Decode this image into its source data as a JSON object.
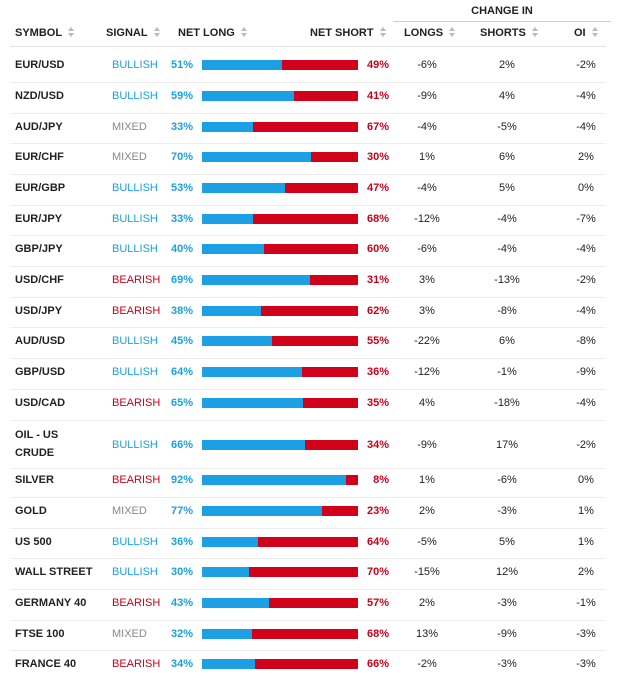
{
  "header": {
    "change_in": "CHANGE IN",
    "symbol": "SYMBOL",
    "signal": "SIGNAL",
    "net_long": "NET LONG",
    "net_short": "NET SHORT",
    "longs": "LONGS",
    "shorts": "SHORTS",
    "oi": "OI"
  },
  "colors": {
    "long": "#1d9fe3",
    "short": "#d0021b",
    "bullish": "#1aa1df",
    "bearish": "#c8001a",
    "mixed": "#888888"
  },
  "rows": [
    {
      "symbol": "EUR/USD",
      "signal": "BULLISH",
      "net_long": "51%",
      "net_short": "49%",
      "long_pct": 51,
      "longs": "-6%",
      "shorts": "2%",
      "oi": "-2%"
    },
    {
      "symbol": "NZD/USD",
      "signal": "BULLISH",
      "net_long": "59%",
      "net_short": "41%",
      "long_pct": 59,
      "longs": "-9%",
      "shorts": "4%",
      "oi": "-4%"
    },
    {
      "symbol": "AUD/JPY",
      "signal": "MIXED",
      "net_long": "33%",
      "net_short": "67%",
      "long_pct": 33,
      "longs": "-4%",
      "shorts": "-5%",
      "oi": "-4%"
    },
    {
      "symbol": "EUR/CHF",
      "signal": "MIXED",
      "net_long": "70%",
      "net_short": "30%",
      "long_pct": 70,
      "longs": "1%",
      "shorts": "6%",
      "oi": "2%"
    },
    {
      "symbol": "EUR/GBP",
      "signal": "BULLISH",
      "net_long": "53%",
      "net_short": "47%",
      "long_pct": 53,
      "longs": "-4%",
      "shorts": "5%",
      "oi": "0%"
    },
    {
      "symbol": "EUR/JPY",
      "signal": "BULLISH",
      "net_long": "33%",
      "net_short": "68%",
      "long_pct": 33,
      "longs": "-12%",
      "shorts": "-4%",
      "oi": "-7%"
    },
    {
      "symbol": "GBP/JPY",
      "signal": "BULLISH",
      "net_long": "40%",
      "net_short": "60%",
      "long_pct": 40,
      "longs": "-6%",
      "shorts": "-4%",
      "oi": "-4%"
    },
    {
      "symbol": "USD/CHF",
      "signal": "BEARISH",
      "net_long": "69%",
      "net_short": "31%",
      "long_pct": 69,
      "longs": "3%",
      "shorts": "-13%",
      "oi": "-2%"
    },
    {
      "symbol": "USD/JPY",
      "signal": "BEARISH",
      "net_long": "38%",
      "net_short": "62%",
      "long_pct": 38,
      "longs": "3%",
      "shorts": "-8%",
      "oi": "-4%"
    },
    {
      "symbol": "AUD/USD",
      "signal": "BULLISH",
      "net_long": "45%",
      "net_short": "55%",
      "long_pct": 45,
      "longs": "-22%",
      "shorts": "6%",
      "oi": "-8%"
    },
    {
      "symbol": "GBP/USD",
      "signal": "BULLISH",
      "net_long": "64%",
      "net_short": "36%",
      "long_pct": 64,
      "longs": "-12%",
      "shorts": "-1%",
      "oi": "-9%"
    },
    {
      "symbol": "USD/CAD",
      "signal": "BEARISH",
      "net_long": "65%",
      "net_short": "35%",
      "long_pct": 65,
      "longs": "4%",
      "shorts": "-18%",
      "oi": "-4%"
    },
    {
      "symbol": "OIL - US CRUDE",
      "signal": "BULLISH",
      "net_long": "66%",
      "net_short": "34%",
      "long_pct": 66,
      "longs": "-9%",
      "shorts": "17%",
      "oi": "-2%"
    },
    {
      "symbol": "SILVER",
      "signal": "BEARISH",
      "net_long": "92%",
      "net_short": "8%",
      "long_pct": 92,
      "longs": "1%",
      "shorts": "-6%",
      "oi": "0%"
    },
    {
      "symbol": "GOLD",
      "signal": "MIXED",
      "net_long": "77%",
      "net_short": "23%",
      "long_pct": 77,
      "longs": "2%",
      "shorts": "-3%",
      "oi": "1%"
    },
    {
      "symbol": "US 500",
      "signal": "BULLISH",
      "net_long": "36%",
      "net_short": "64%",
      "long_pct": 36,
      "longs": "-5%",
      "shorts": "5%",
      "oi": "1%"
    },
    {
      "symbol": "WALL STREET",
      "signal": "BULLISH",
      "net_long": "30%",
      "net_short": "70%",
      "long_pct": 30,
      "longs": "-15%",
      "shorts": "12%",
      "oi": "2%"
    },
    {
      "symbol": "GERMANY 40",
      "signal": "BEARISH",
      "net_long": "43%",
      "net_short": "57%",
      "long_pct": 43,
      "longs": "2%",
      "shorts": "-3%",
      "oi": "-1%"
    },
    {
      "symbol": "FTSE 100",
      "signal": "MIXED",
      "net_long": "32%",
      "net_short": "68%",
      "long_pct": 32,
      "longs": "13%",
      "shorts": "-9%",
      "oi": "-3%"
    },
    {
      "symbol": "FRANCE 40",
      "signal": "BEARISH",
      "net_long": "34%",
      "net_short": "66%",
      "long_pct": 34,
      "longs": "-2%",
      "shorts": "-3%",
      "oi": "-3%"
    }
  ]
}
